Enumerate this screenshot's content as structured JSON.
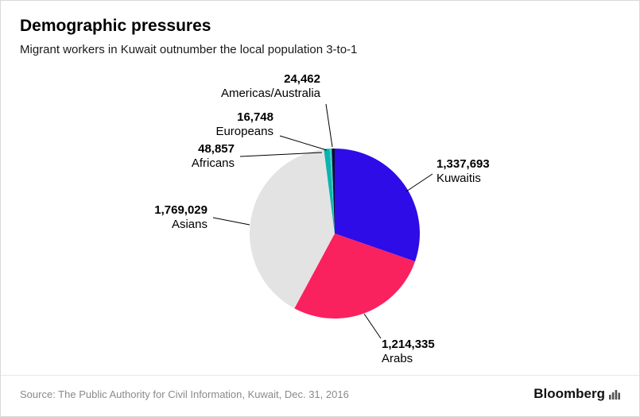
{
  "header": {
    "title": "Demographic pressures",
    "subtitle": "Migrant workers in Kuwait outnumber the local population 3-to-1"
  },
  "chart_data": {
    "type": "pie",
    "title": "Demographic pressures",
    "subtitle": "Migrant workers in Kuwait outnumber the local population 3-to-1",
    "start_angle_deg": 0,
    "direction": "clockwise",
    "slices": [
      {
        "label": "Kuwaitis",
        "value": 1337693,
        "value_label": "1,337,693",
        "color": "#2d0ce8"
      },
      {
        "label": "Arabs",
        "value": 1214335,
        "value_label": "1,214,335",
        "color": "#fa215f"
      },
      {
        "label": "Asians",
        "value": 1769029,
        "value_label": "1,769,029",
        "color": "#e3e3e3"
      },
      {
        "label": "Africans",
        "value": 48857,
        "value_label": "48,857",
        "color": "#0bb3ab"
      },
      {
        "label": "Europeans",
        "value": 16748,
        "value_label": "16,748",
        "color": "#35d3d3"
      },
      {
        "label": "Americas/Australia",
        "value": 24462,
        "value_label": "24,462",
        "color": "#0d0d2b"
      }
    ]
  },
  "footer": {
    "source": "Source: The Public Authority for Civil Information, Kuwait, Dec. 31, 2016",
    "brand": "Bloomberg"
  }
}
